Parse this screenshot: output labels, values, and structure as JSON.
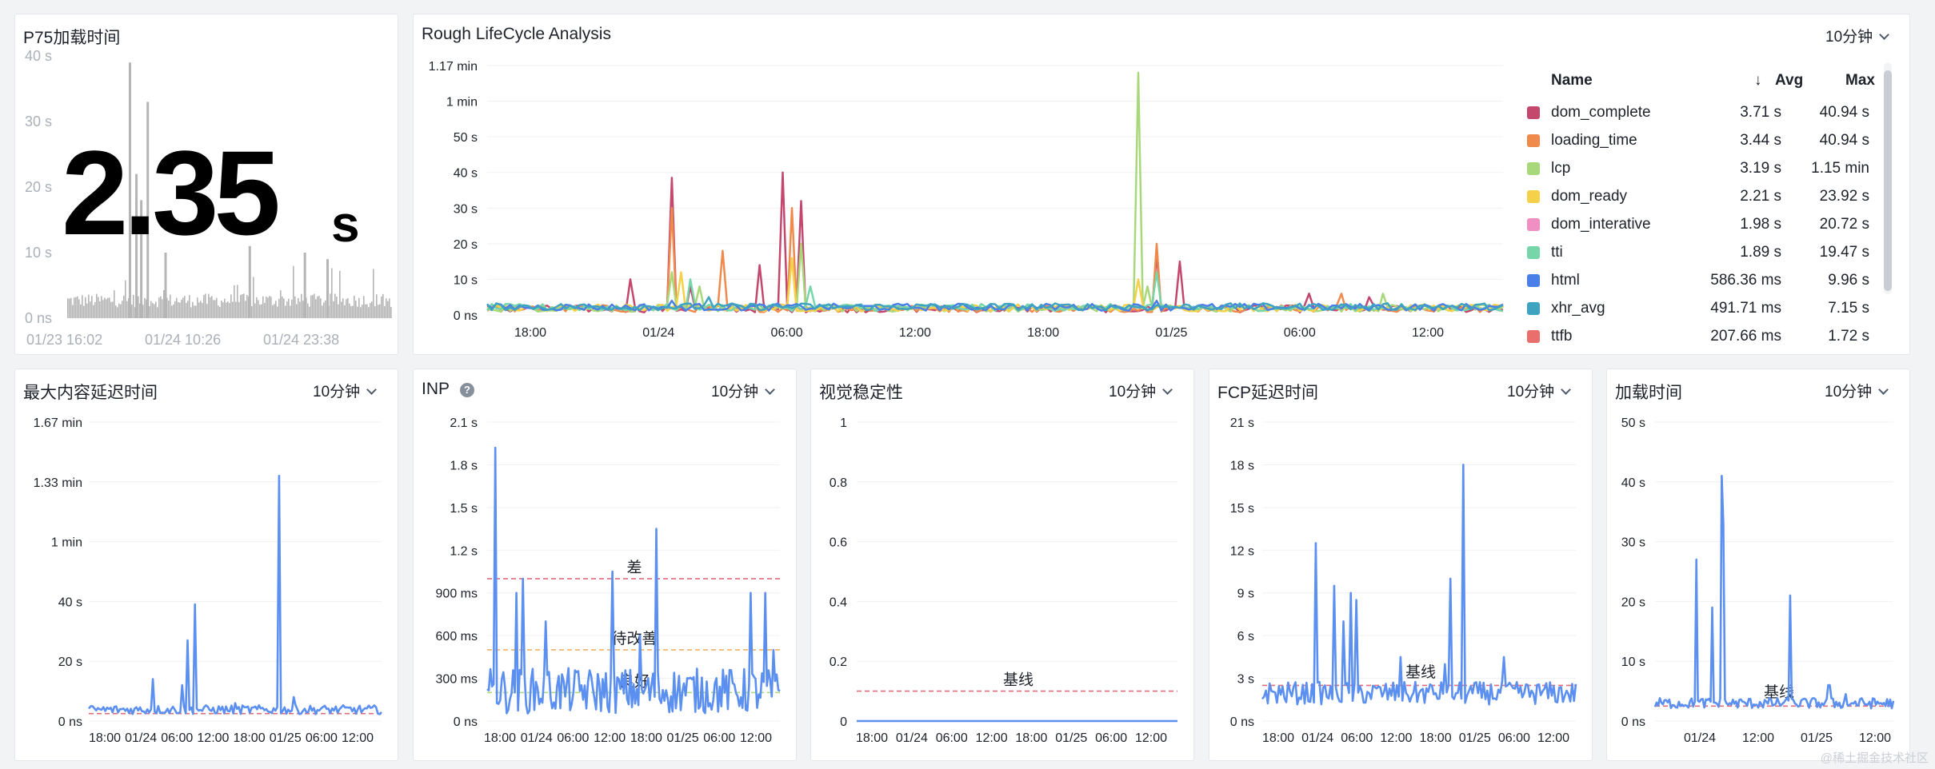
{
  "interval_label": "10分钟",
  "watermark": "@稀土掘金技术社区",
  "p75": {
    "title": "P75加载时间",
    "value": "2.35",
    "unit": "s",
    "chart_data": {
      "type": "bar",
      "y_ticks": [
        "40 s",
        "30 s",
        "20 s",
        "10 s",
        "0 ns"
      ],
      "ylim": [
        0,
        40
      ],
      "x_ticks": [
        "01/23 16:02",
        "01/24 10:26",
        "01/24 23:38"
      ],
      "spikes": [
        {
          "x": 0.19,
          "value": 39
        },
        {
          "x": 0.245,
          "value": 33
        },
        {
          "x": 0.225,
          "value": 18
        },
        {
          "x": 0.21,
          "value": 22
        },
        {
          "x": 0.3,
          "value": 10
        },
        {
          "x": 0.56,
          "value": 11
        },
        {
          "x": 0.73,
          "value": 10
        },
        {
          "x": 0.8,
          "value": 9
        }
      ],
      "baseline": 2.35,
      "color": "#b5b5b5"
    }
  },
  "lifecycle": {
    "title": "Rough LifeCycle Analysis",
    "legend_header": {
      "name": "Name",
      "avg": "Avg",
      "max": "Max",
      "sort_icon": "arrow-down-icon"
    },
    "legend": [
      {
        "name": "dom_complete",
        "avg": "3.71 s",
        "max": "40.94 s",
        "color": "#c4486d"
      },
      {
        "name": "loading_time",
        "avg": "3.44 s",
        "max": "40.94 s",
        "color": "#ef8a4c"
      },
      {
        "name": "lcp",
        "avg": "3.19 s",
        "max": "1.15 min",
        "color": "#a9d87a"
      },
      {
        "name": "dom_ready",
        "avg": "2.21 s",
        "max": "23.92 s",
        "color": "#f5d14a"
      },
      {
        "name": "dom_interative",
        "avg": "1.98 s",
        "max": "20.72 s",
        "color": "#f08fc1"
      },
      {
        "name": "tti",
        "avg": "1.89 s",
        "max": "19.47 s",
        "color": "#77d6a9"
      },
      {
        "name": "html",
        "avg": "586.36 ms",
        "max": "9.96 s",
        "color": "#4a7ee8"
      },
      {
        "name": "xhr_avg",
        "avg": "491.71 ms",
        "max": "7.15 s",
        "color": "#3ea3c1"
      },
      {
        "name": "ttfb",
        "avg": "207.66 ms",
        "max": "1.72 s",
        "color": "#ea6f6c"
      },
      {
        "name": "",
        "avg": "",
        "max": "",
        "color": "#eab95a"
      }
    ],
    "chart_data": {
      "type": "line",
      "y_ticks": [
        "1.17 min",
        "1 min",
        "50 s",
        "40 s",
        "30 s",
        "20 s",
        "10 s",
        "0 ns"
      ],
      "y_tick_values": [
        70,
        60,
        50,
        40,
        30,
        20,
        10,
        0
      ],
      "ylim": [
        0,
        70
      ],
      "x_ticks": [
        "18:00",
        "01/24",
        "06:00",
        "12:00",
        "18:00",
        "01/25",
        "06:00",
        "12:00"
      ],
      "series": [
        {
          "name": "dom_complete",
          "color": "#c4486d",
          "peaks": [
            [
              0.14,
              10
            ],
            [
              0.18,
              38.5
            ],
            [
              0.27,
              14
            ],
            [
              0.29,
              40
            ],
            [
              0.31,
              32
            ],
            [
              0.66,
              17
            ],
            [
              0.68,
              15
            ],
            [
              0.81,
              6
            ],
            [
              0.87,
              5
            ],
            [
              0.2,
              8
            ]
          ]
        },
        {
          "name": "loading_time",
          "color": "#ef8a4c",
          "peaks": [
            [
              0.18,
              30
            ],
            [
              0.23,
              18
            ],
            [
              0.3,
              30
            ],
            [
              0.66,
              20
            ],
            [
              0.84,
              6
            ]
          ]
        },
        {
          "name": "lcp",
          "color": "#a9d87a",
          "peaks": [
            [
              0.18,
              12
            ],
            [
              0.21,
              8
            ],
            [
              0.31,
              20
            ],
            [
              0.64,
              68
            ],
            [
              0.65,
              8
            ],
            [
              0.88,
              6
            ]
          ]
        },
        {
          "name": "dom_ready",
          "color": "#f5d14a",
          "peaks": [
            [
              0.19,
              12
            ],
            [
              0.3,
              16
            ],
            [
              0.64,
              10
            ]
          ]
        },
        {
          "name": "tti",
          "color": "#77d6a9",
          "peaks": [
            [
              0.2,
              10
            ],
            [
              0.32,
              8
            ],
            [
              0.66,
              12
            ]
          ]
        },
        {
          "name": "html",
          "color": "#4a7ee8",
          "peaks": [
            [
              0.18,
              4
            ],
            [
              0.66,
              4
            ]
          ]
        },
        {
          "name": "xhr_avg",
          "color": "#3ea3c1",
          "peaks": [
            [
              0.22,
              5
            ],
            [
              0.5,
              3
            ]
          ]
        }
      ]
    }
  },
  "lcp_panel": {
    "title": "最大内容延迟时间",
    "chart_data": {
      "type": "line",
      "y_ticks": [
        "1.67 min",
        "1.33 min",
        "1 min",
        "40 s",
        "20 s",
        "0 ns"
      ],
      "y_tick_values": [
        100,
        80,
        60,
        40,
        20,
        0
      ],
      "ylim": [
        0,
        100
      ],
      "x_ticks": [
        "18:00",
        "01/24",
        "06:00",
        "12:00",
        "18:00",
        "01/25",
        "06:00",
        "12:00"
      ],
      "baseline": 2.5,
      "peaks": [
        [
          0.34,
          27
        ],
        [
          0.36,
          39
        ],
        [
          0.32,
          12
        ],
        [
          0.22,
          14
        ],
        [
          0.65,
          82
        ],
        [
          0.7,
          8
        ],
        [
          0.5,
          6
        ]
      ],
      "color": "#5b8ff0"
    }
  },
  "inp_panel": {
    "title": "INP",
    "help_icon": "question-circle-icon",
    "thresholds": [
      {
        "label": "差",
        "value": 1000,
        "color": "#e06b7a"
      },
      {
        "label": "待改善",
        "value": 500,
        "color": "#f0b065"
      },
      {
        "label": "良好",
        "value": 200,
        "color": "#a9d87a"
      }
    ],
    "chart_data": {
      "type": "line",
      "y_ticks": [
        "2.1 s",
        "1.8 s",
        "1.5 s",
        "1.2 s",
        "900 ms",
        "600 ms",
        "300 ms",
        "0 ns"
      ],
      "y_tick_values": [
        2100,
        1800,
        1500,
        1200,
        900,
        600,
        300,
        0
      ],
      "ylim": [
        0,
        2100
      ],
      "x_ticks": [
        "18:00",
        "01/24",
        "06:00",
        "12:00",
        "18:00",
        "01/25",
        "06:00",
        "12:00"
      ],
      "peaks": [
        [
          0.03,
          1920
        ],
        [
          0.1,
          900
        ],
        [
          0.12,
          1000
        ],
        [
          0.2,
          700
        ],
        [
          0.43,
          1050
        ],
        [
          0.52,
          600
        ],
        [
          0.58,
          1350
        ],
        [
          0.9,
          900
        ],
        [
          0.95,
          900
        ],
        [
          0.98,
          500
        ]
      ],
      "color": "#5b8ff0"
    }
  },
  "cls_panel": {
    "title": "视觉稳定性",
    "baseline_label": "基线",
    "chart_data": {
      "type": "line",
      "y_ticks": [
        "1",
        "0.8",
        "0.6",
        "0.4",
        "0.2",
        "0"
      ],
      "y_tick_values": [
        1,
        0.8,
        0.6,
        0.4,
        0.2,
        0
      ],
      "ylim": [
        0,
        1
      ],
      "x_ticks": [
        "18:00",
        "01/24",
        "06:00",
        "12:00",
        "18:00",
        "01/25",
        "06:00",
        "12:00"
      ],
      "baseline": 0.1,
      "value": 0,
      "color": "#5b8ff0"
    }
  },
  "fcp_panel": {
    "title": "FCP延迟时间",
    "baseline_label": "基线",
    "chart_data": {
      "type": "line",
      "y_ticks": [
        "21 s",
        "18 s",
        "15 s",
        "12 s",
        "9 s",
        "6 s",
        "3 s",
        "0 ns"
      ],
      "y_tick_values": [
        21,
        18,
        15,
        12,
        9,
        6,
        3,
        0
      ],
      "ylim": [
        0,
        21
      ],
      "x_ticks": [
        "18:00",
        "01/24",
        "06:00",
        "12:00",
        "18:00",
        "01/25",
        "06:00",
        "12:00"
      ],
      "baseline": 2.5,
      "peaks": [
        [
          0.17,
          12.5
        ],
        [
          0.23,
          9.5
        ],
        [
          0.28,
          9
        ],
        [
          0.3,
          8.5
        ],
        [
          0.26,
          7
        ],
        [
          0.64,
          18
        ],
        [
          0.6,
          10
        ],
        [
          0.44,
          4.5
        ],
        [
          0.77,
          4.5
        ],
        [
          0.58,
          4
        ]
      ],
      "color": "#5b8ff0"
    }
  },
  "load_panel": {
    "title": "加载时间",
    "baseline_label": "基线",
    "chart_data": {
      "type": "line",
      "y_ticks": [
        "50 s",
        "40 s",
        "30 s",
        "20 s",
        "10 s",
        "0 ns"
      ],
      "y_tick_values": [
        50,
        40,
        30,
        20,
        10,
        0
      ],
      "ylim": [
        0,
        50
      ],
      "x_ticks": [
        "01/24",
        "12:00",
        "01/25",
        "12:00"
      ],
      "baseline": 2.5,
      "peaks": [
        [
          0.17,
          27
        ],
        [
          0.24,
          19
        ],
        [
          0.28,
          41
        ],
        [
          0.29,
          33
        ],
        [
          0.31,
          15
        ],
        [
          0.57,
          21
        ],
        [
          0.73,
          6
        ],
        [
          0.8,
          4.5
        ],
        [
          0.98,
          2.5
        ]
      ],
      "color": "#5b8ff0"
    }
  }
}
